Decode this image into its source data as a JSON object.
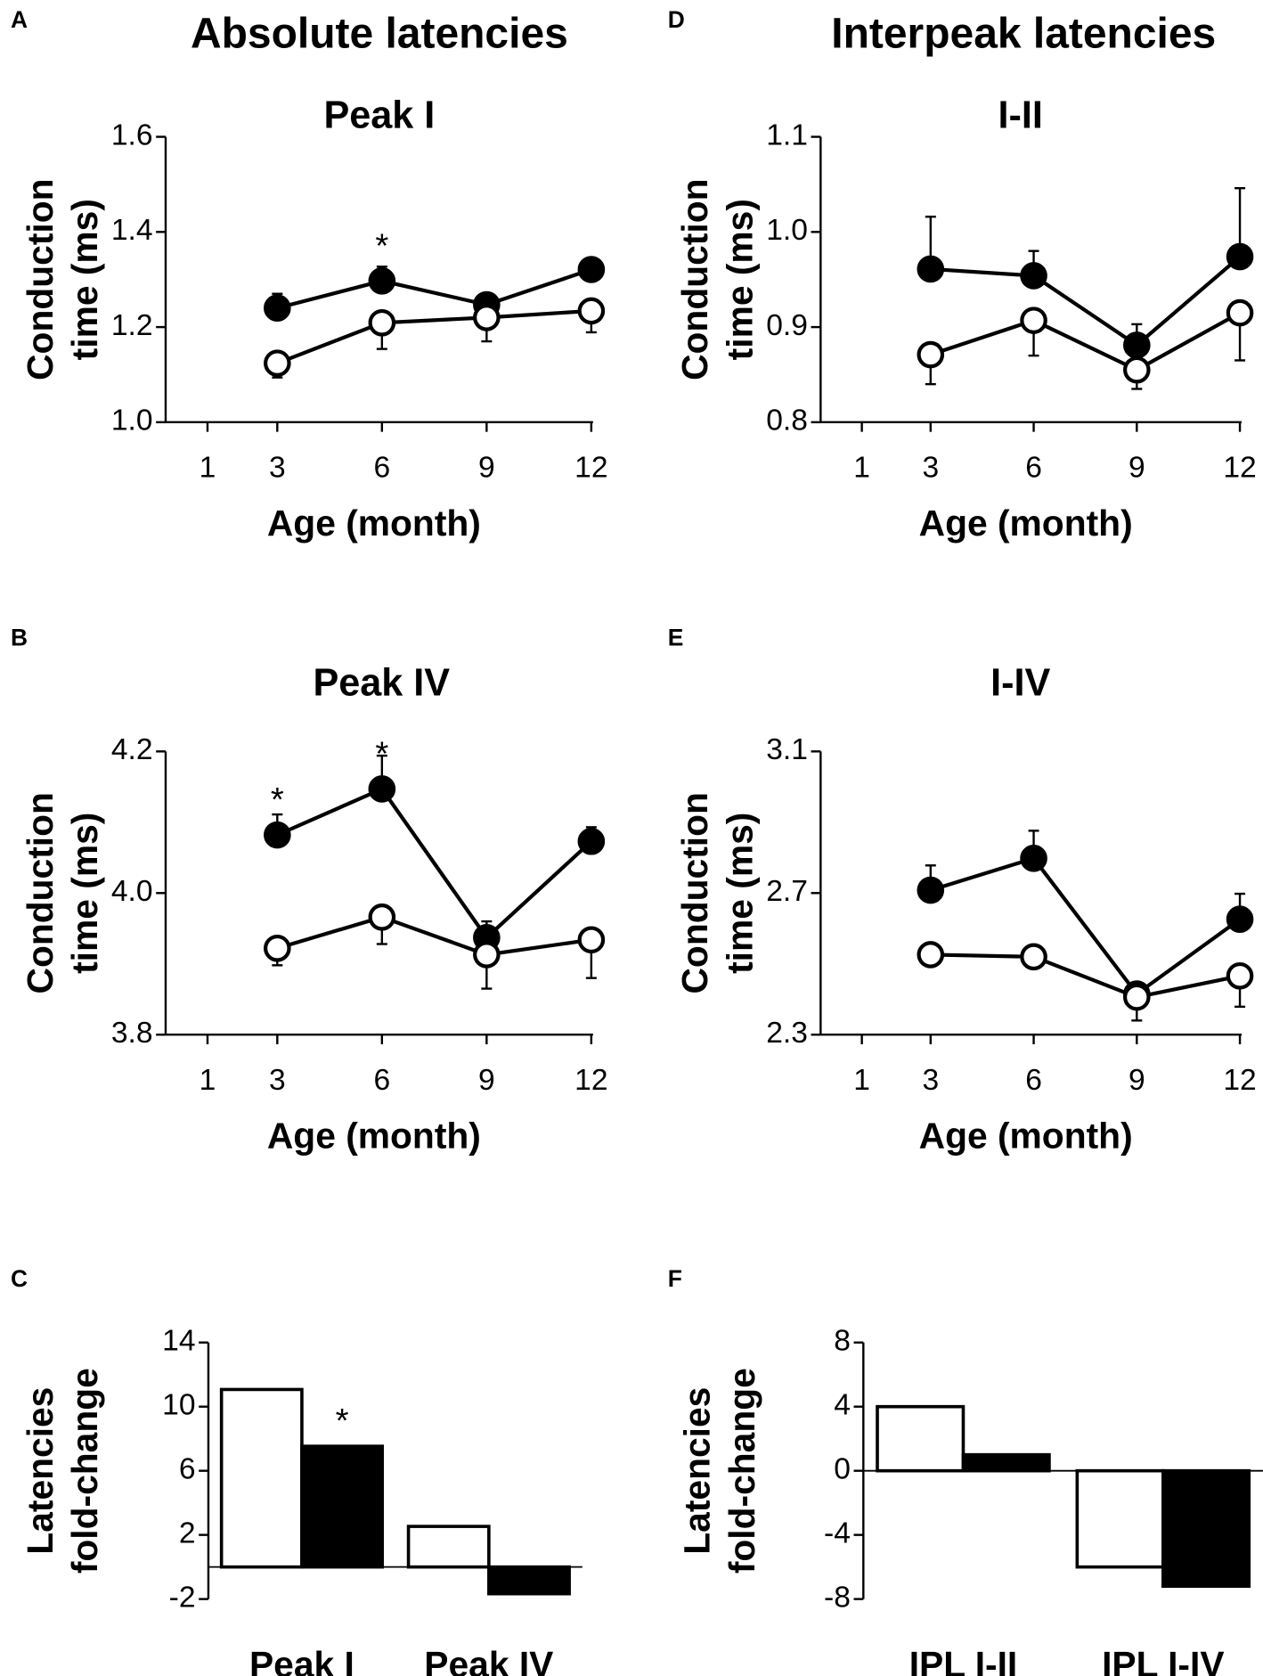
{
  "column_titles": [
    "Absolute latencies",
    "Interpeak latencies"
  ],
  "chart_data": [
    {
      "type": "line",
      "panel": "A",
      "title": "Peak I",
      "ylabel": [
        "Conduction",
        "time (ms)"
      ],
      "xlabel": "Age (month)",
      "x": [
        3,
        6,
        9,
        12
      ],
      "xlim": [
        -0.2,
        12.05
      ],
      "xticks": [
        1,
        3,
        6,
        9,
        12
      ],
      "ylim": [
        1.0,
        1.6
      ],
      "yticks": [
        {
          "value": 1.0,
          "label": "1.0"
        },
        1.2,
        1.4,
        1.6
      ],
      "edge_color": "#000000",
      "series": [
        {
          "color": "#000000",
          "error_direction": "up",
          "values": [
            1.24,
            1.297,
            1.247,
            1.321
          ],
          "errors": [
            0.03,
            0.03,
            0.01,
            0.01
          ]
        },
        {
          "color": "#ffffff",
          "error_direction": "down",
          "values": [
            1.124,
            1.209,
            1.22,
            1.234
          ],
          "errors": [
            0.03,
            0.055,
            0.05,
            0.045
          ]
        }
      ],
      "annotations": [
        {
          "text": "*",
          "x": 6,
          "series": 0
        }
      ]
    },
    {
      "type": "line",
      "panel": "D",
      "title": "I-II",
      "ylabel": [
        "Conduction",
        "time (ms)"
      ],
      "xlabel": "Age (month)",
      "x": [
        3,
        6,
        9,
        12
      ],
      "xlim": [
        -0.2,
        12.05
      ],
      "xticks": [
        1,
        3,
        6,
        9,
        12
      ],
      "ylim": [
        0.8,
        1.1
      ],
      "yticks": [
        0.8,
        0.9,
        {
          "value": 1.0,
          "label": "1.0"
        },
        1.1
      ],
      "edge_color": "#000000",
      "series": [
        {
          "color": "#000000",
          "error_direction": "up",
          "values": [
            0.961,
            0.954,
            0.881,
            0.974
          ],
          "errors": [
            0.055,
            0.026,
            0.022,
            0.072
          ]
        },
        {
          "color": "#ffffff",
          "error_direction": "down",
          "values": [
            0.871,
            0.907,
            0.855,
            0.915
          ],
          "errors": [
            0.031,
            0.037,
            0.02,
            0.05
          ]
        }
      ],
      "annotations": []
    },
    {
      "type": "line",
      "panel": "B",
      "title": "Peak IV",
      "ylabel": [
        "Conduction",
        "time (ms)"
      ],
      "xlabel": "Age (month)",
      "x": [
        3,
        6,
        9,
        12
      ],
      "xlim": [
        -0.2,
        12.05
      ],
      "xticks": [
        1,
        3,
        6,
        9,
        12
      ],
      "ylim": [
        3.8,
        4.2
      ],
      "yticks": [
        3.8,
        {
          "value": 4.0,
          "label": "4.0"
        },
        4.2
      ],
      "edge_color": "#000000",
      "series": [
        {
          "color": "#000000",
          "error_direction": "up",
          "values": [
            4.082,
            4.147,
            3.937,
            4.073
          ],
          "errors": [
            0.029,
            0.047,
            0.023,
            0.02
          ]
        },
        {
          "color": "#ffffff",
          "error_direction": "down",
          "values": [
            3.922,
            3.966,
            3.913,
            3.934
          ],
          "errors": [
            0.024,
            0.038,
            0.048,
            0.054
          ]
        }
      ],
      "annotations": [
        {
          "text": "*",
          "x": 3,
          "series": 0
        },
        {
          "text": "*",
          "x": 6,
          "series": 0
        }
      ]
    },
    {
      "type": "line",
      "panel": "E",
      "title": "I-IV",
      "ylabel": [
        "Conduction",
        "time (ms)"
      ],
      "xlabel": "Age (month)",
      "x": [
        3,
        6,
        9,
        12
      ],
      "xlim": [
        -0.2,
        12.05
      ],
      "xticks": [
        1,
        3,
        6,
        9,
        12
      ],
      "ylim": [
        2.3,
        3.1
      ],
      "yticks": [
        2.3,
        2.7,
        3.1
      ],
      "edge_color": "#000000",
      "series": [
        {
          "color": "#000000",
          "error_direction": "up",
          "values": [
            2.708,
            2.798,
            2.415,
            2.626
          ],
          "errors": [
            0.07,
            0.078,
            0.015,
            0.072
          ]
        },
        {
          "color": "#ffffff",
          "error_direction": "down",
          "values": [
            2.526,
            2.52,
            2.406,
            2.466
          ],
          "errors": [
            0.005,
            0.005,
            0.066,
            0.087
          ]
        }
      ],
      "annotations": []
    },
    {
      "type": "bar",
      "panel": "C",
      "ylabel": [
        "Latencies",
        "fold-change"
      ],
      "categories": [
        "Peak I",
        "Peak IV"
      ],
      "ylim": [
        -2,
        14
      ],
      "yticks": [
        -2,
        2,
        6,
        10,
        14
      ],
      "edge_color": "#000000",
      "series": [
        {
          "color": "#ffffff",
          "values": [
            11.07,
            2.53
          ]
        },
        {
          "color": "#000000",
          "values": [
            7.53,
            -1.67
          ]
        }
      ],
      "annotations": [
        {
          "text": "*",
          "x": 0,
          "series": 1
        }
      ]
    },
    {
      "type": "bar",
      "panel": "F",
      "ylabel": [
        "Latencies",
        "fold-change"
      ],
      "categories": [
        "IPL I-II",
        "IPL I-IV"
      ],
      "ylim": [
        -8,
        8
      ],
      "yticks": [
        -8,
        -4,
        0,
        4,
        8
      ],
      "edge_color": "#000000",
      "series": [
        {
          "color": "#ffffff",
          "values": [
            4.0,
            -6.0
          ]
        },
        {
          "color": "#000000",
          "values": [
            1.0,
            -7.2
          ]
        }
      ],
      "annotations": []
    }
  ]
}
